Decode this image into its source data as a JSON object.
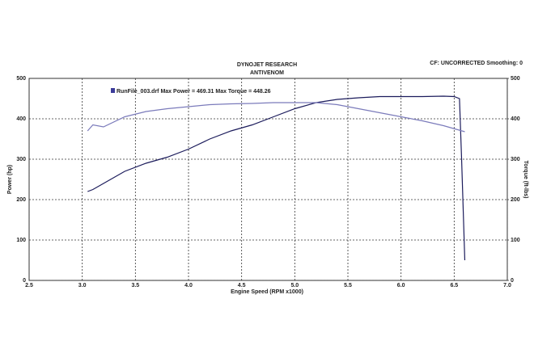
{
  "chart_data": {
    "type": "line",
    "title": "DYNOJET RESEARCH",
    "subtitle": "ANTIVENOM",
    "header_note": "CF: UNCORRECTED  Smoothing: 0",
    "annotation": "RunFile_003.drf Max Power = 469.31     Max Torque = 448.26",
    "x_label": "Engine Speed (RPM x1000)",
    "y_label": "Power (hp)",
    "y2_label": "Torque (ft-lbs)",
    "xlim": [
      2.5,
      7.0
    ],
    "xticks": [
      {
        "value": 2.5,
        "label": "2.5"
      },
      {
        "value": 3.0,
        "label": "3.0"
      },
      {
        "value": 3.5,
        "label": "3.5"
      },
      {
        "value": 4.0,
        "label": "4.0"
      },
      {
        "value": 4.5,
        "label": "4.5"
      },
      {
        "value": 5.0,
        "label": "5.0"
      },
      {
        "value": 5.5,
        "label": "5.5"
      },
      {
        "value": 6.0,
        "label": "6.0"
      },
      {
        "value": 6.5,
        "label": "6.5"
      },
      {
        "value": 7.0,
        "label": "7.0"
      }
    ],
    "ylim": [
      0,
      500
    ],
    "yticks": [
      0,
      100,
      200,
      300,
      400,
      500
    ],
    "y2lim": [
      0,
      500
    ],
    "y2ticks": [
      0,
      100,
      200,
      300,
      400,
      500
    ],
    "grid": true,
    "series": [
      {
        "color": "#1c1c5c",
        "axis": "y",
        "x": [
          3.05,
          3.1,
          3.2,
          3.4,
          3.6,
          3.8,
          4.0,
          4.2,
          4.4,
          4.6,
          4.8,
          5.0,
          5.2,
          5.4,
          5.6,
          5.8,
          6.0,
          6.2,
          6.4,
          6.5,
          6.55,
          6.57,
          6.6
        ],
        "values": [
          220,
          225,
          240,
          270,
          290,
          305,
          325,
          350,
          370,
          385,
          405,
          425,
          440,
          448,
          452,
          455,
          455,
          455,
          456,
          455,
          450,
          300,
          50
        ]
      },
      {
        "color": "#7b7bbb",
        "axis": "y2",
        "x": [
          3.05,
          3.1,
          3.2,
          3.4,
          3.6,
          3.8,
          4.0,
          4.2,
          4.4,
          4.6,
          4.8,
          5.0,
          5.2,
          5.4,
          5.6,
          5.8,
          6.0,
          6.2,
          6.4,
          6.6
        ],
        "values": [
          370,
          385,
          380,
          405,
          418,
          425,
          430,
          435,
          437,
          438,
          440,
          440,
          440,
          435,
          425,
          415,
          405,
          395,
          383,
          368
        ]
      }
    ]
  }
}
